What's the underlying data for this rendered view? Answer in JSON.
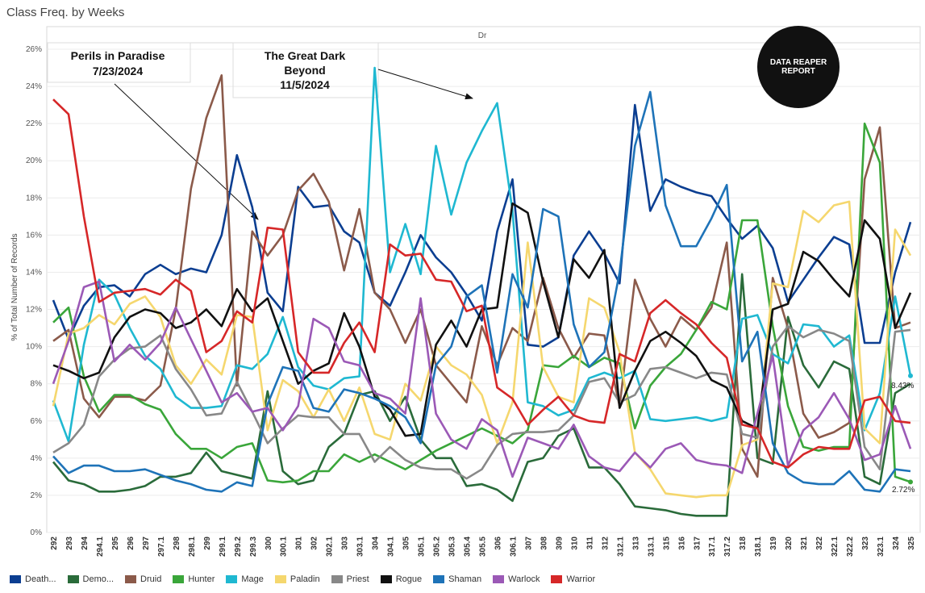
{
  "title": "Class Freq. by Weeks",
  "panel_header": "Dr",
  "logo_text": "DATA REAPER REPORT",
  "chart_data": {
    "type": "line",
    "ylabel": "% of Total Number of Records",
    "ylim": [
      0,
      26
    ],
    "yticks": [
      "0%",
      "2%",
      "4%",
      "6%",
      "8%",
      "10%",
      "12%",
      "14%",
      "16%",
      "18%",
      "20%",
      "22%",
      "24%",
      "26%"
    ],
    "x": [
      "292",
      "293",
      "294",
      "294.1",
      "295",
      "296",
      "297",
      "297.1",
      "298",
      "298.1",
      "299",
      "299.1",
      "299.2",
      "299.3",
      "300",
      "300.1",
      "301",
      "302",
      "302.1",
      "303",
      "303.1",
      "304",
      "304.1",
      "305",
      "305.1",
      "305.2",
      "305.3",
      "305.4",
      "305.5",
      "306",
      "306.1",
      "307",
      "308",
      "309",
      "310",
      "311",
      "312",
      "312.1",
      "313",
      "313.1",
      "315",
      "316",
      "317",
      "317.1",
      "317.2",
      "318",
      "318.1",
      "319",
      "320",
      "321",
      "322",
      "322.1",
      "322.2",
      "323",
      "323.1",
      "324",
      "325"
    ],
    "annotations": [
      {
        "text": "Perils in Paradise",
        "text2": "7/23/2024"
      },
      {
        "text": "The Great Dark",
        "text2": "Beyond",
        "text3": "11/5/2024"
      }
    ],
    "end_labels": [
      "8.43%",
      "2.72%"
    ],
    "series": [
      {
        "name": "Death...",
        "color": "#0b3e91",
        "values": [
          12.5,
          10.4,
          12.2,
          13.2,
          13.3,
          12.7,
          13.9,
          14.4,
          13.9,
          14.2,
          14.0,
          16.0,
          20.3,
          17.5,
          12.9,
          11.9,
          18.6,
          17.5,
          17.6,
          16.2,
          15.6,
          12.9,
          12.2,
          14.0,
          16.0,
          14.8,
          14.0,
          12.8,
          11.4,
          16.2,
          19.0,
          10.1,
          10.0,
          10.5,
          14.9,
          16.2,
          15.0,
          13.4,
          23.0,
          17.3,
          19.0,
          18.6,
          18.3,
          18.1,
          16.9,
          15.8,
          16.5,
          15.3,
          12.4,
          13.6,
          14.8,
          15.9,
          15.5,
          10.2,
          10.2,
          14.0,
          16.7
        ]
      },
      {
        "name": "Demo...",
        "color": "#2a6b3a",
        "values": [
          3.8,
          2.8,
          2.6,
          2.2,
          2.2,
          2.3,
          2.5,
          3.0,
          3.0,
          3.2,
          4.3,
          3.3,
          3.1,
          2.9,
          7.6,
          3.3,
          2.6,
          2.8,
          4.6,
          5.3,
          7.4,
          7.6,
          6.0,
          7.3,
          5.0,
          4.0,
          4.0,
          2.5,
          2.6,
          2.3,
          1.7,
          3.8,
          4.0,
          5.2,
          5.6,
          3.5,
          3.5,
          2.6,
          1.4,
          1.3,
          1.2,
          1.0,
          0.9,
          0.9,
          0.9,
          13.9,
          4.0,
          3.7,
          11.6,
          9.0,
          7.8,
          9.2,
          8.8,
          3.0,
          2.6,
          7.5,
          8.0
        ]
      },
      {
        "name": "Druid",
        "color": "#8b5a4a",
        "values": [
          10.3,
          10.9,
          7.2,
          6.2,
          7.3,
          7.3,
          7.1,
          7.9,
          12.0,
          18.5,
          22.3,
          24.6,
          7.9,
          16.2,
          14.9,
          16.0,
          18.4,
          19.3,
          17.8,
          14.1,
          17.4,
          12.9,
          12.0,
          10.2,
          12.0,
          9.0,
          8.0,
          7.0,
          11.1,
          9.0,
          11.0,
          10.3,
          13.7,
          11.0,
          9.4,
          10.7,
          10.6,
          6.8,
          13.6,
          11.5,
          10.0,
          11.6,
          10.9,
          12.1,
          15.6,
          4.5,
          3.0,
          13.7,
          11.0,
          6.4,
          5.1,
          5.4,
          5.9,
          19.0,
          21.8,
          11.0,
          11.3
        ]
      },
      {
        "name": "Hunter",
        "color": "#3aa63a",
        "values": [
          11.3,
          12.1,
          8.4,
          6.5,
          7.4,
          7.4,
          6.9,
          6.6,
          5.3,
          4.5,
          4.5,
          4.0,
          4.6,
          4.8,
          2.8,
          2.7,
          2.8,
          3.3,
          3.3,
          4.2,
          3.8,
          4.2,
          3.8,
          3.4,
          3.9,
          4.4,
          4.8,
          5.2,
          5.6,
          5.2,
          4.8,
          5.5,
          9.0,
          8.9,
          9.5,
          8.9,
          9.4,
          9.1,
          5.6,
          7.9,
          8.9,
          9.6,
          10.9,
          12.4,
          12.0,
          16.8,
          16.8,
          11.1,
          6.8,
          4.6,
          4.4,
          4.6,
          4.6,
          22.0,
          19.9,
          3.0,
          2.72
        ]
      },
      {
        "name": "Mage",
        "color": "#1fb8d1",
        "values": [
          7.1,
          4.9,
          10.1,
          13.6,
          12.8,
          11.0,
          9.5,
          8.8,
          7.3,
          6.7,
          6.7,
          6.8,
          9.0,
          8.8,
          9.6,
          11.6,
          8.9,
          7.9,
          7.7,
          8.3,
          8.4,
          25.0,
          14.0,
          16.6,
          13.9,
          20.8,
          17.1,
          19.9,
          21.6,
          23.1,
          17.3,
          7.0,
          6.8,
          6.3,
          6.6,
          8.3,
          8.6,
          8.3,
          8.7,
          6.1,
          6.0,
          6.1,
          6.2,
          6.0,
          6.2,
          11.5,
          11.7,
          9.6,
          9.1,
          11.2,
          11.1,
          10.0,
          10.6,
          5.5,
          7.5,
          12.7,
          8.43
        ]
      },
      {
        "name": "Paladin",
        "color": "#f5d76e",
        "values": [
          6.8,
          10.7,
          11.0,
          11.7,
          11.2,
          12.3,
          12.7,
          11.6,
          9.0,
          8.0,
          9.3,
          8.5,
          11.7,
          11.6,
          5.5,
          8.2,
          7.6,
          6.2,
          7.7,
          6.0,
          7.8,
          5.3,
          5.0,
          8.0,
          7.1,
          10.0,
          9.0,
          8.5,
          7.4,
          4.8,
          7.0,
          15.6,
          8.9,
          7.3,
          7.0,
          12.6,
          12.1,
          9.7,
          4.3,
          3.4,
          2.1,
          2.0,
          1.9,
          2.0,
          2.0,
          4.7,
          5.0,
          13.4,
          13.2,
          17.3,
          16.7,
          17.6,
          17.8,
          5.6,
          4.8,
          16.3,
          14.9
        ]
      },
      {
        "name": "Priest",
        "color": "#888888",
        "values": [
          4.3,
          4.8,
          5.8,
          8.4,
          9.3,
          9.9,
          10.0,
          10.6,
          8.8,
          7.7,
          6.3,
          6.4,
          8.1,
          6.5,
          4.8,
          5.6,
          6.3,
          6.2,
          6.2,
          5.3,
          5.3,
          3.8,
          4.6,
          3.9,
          3.5,
          3.4,
          3.4,
          2.9,
          3.4,
          4.7,
          5.3,
          5.4,
          5.4,
          5.5,
          6.3,
          8.1,
          8.3,
          7.0,
          7.4,
          8.8,
          8.9,
          8.6,
          8.3,
          8.6,
          8.5,
          5.3,
          5.1,
          10.0,
          11.1,
          10.5,
          10.9,
          10.7,
          10.3,
          4.6,
          3.4,
          10.8,
          10.9
        ]
      },
      {
        "name": "Rogue",
        "color": "#111111",
        "values": [
          9.0,
          8.7,
          8.3,
          8.6,
          10.5,
          11.6,
          12.0,
          11.8,
          11.0,
          11.3,
          12.0,
          11.1,
          13.1,
          11.9,
          12.6,
          10.3,
          8.0,
          8.7,
          9.1,
          11.8,
          10.0,
          7.3,
          6.6,
          5.2,
          5.3,
          10.1,
          11.4,
          10.0,
          12.0,
          12.1,
          17.7,
          17.2,
          13.5,
          10.5,
          14.7,
          13.7,
          15.2,
          6.7,
          8.7,
          10.3,
          10.8,
          10.2,
          9.5,
          8.2,
          7.8,
          6.0,
          5.6,
          12.0,
          12.3,
          15.1,
          14.6,
          13.6,
          12.7,
          16.8,
          15.8,
          11.0,
          12.9
        ]
      },
      {
        "name": "Shaman",
        "color": "#1e73b8",
        "values": [
          4.1,
          3.2,
          3.6,
          3.6,
          3.3,
          3.3,
          3.4,
          3.1,
          2.8,
          2.6,
          2.3,
          2.2,
          2.7,
          2.5,
          6.9,
          8.9,
          8.7,
          6.7,
          6.5,
          7.7,
          7.5,
          7.2,
          6.8,
          6.2,
          4.8,
          9.0,
          10.0,
          12.7,
          13.3,
          8.6,
          13.9,
          12.1,
          17.4,
          17.0,
          11.2,
          8.9,
          9.7,
          14.0,
          20.8,
          23.7,
          17.6,
          15.4,
          15.4,
          16.9,
          18.7,
          9.2,
          10.8,
          4.8,
          3.2,
          2.7,
          2.6,
          2.6,
          3.3,
          2.3,
          2.2,
          3.4,
          3.3
        ]
      },
      {
        "name": "Warlock",
        "color": "#9b59b6",
        "values": [
          8.0,
          10.3,
          13.2,
          13.5,
          9.2,
          10.1,
          9.3,
          10.2,
          12.1,
          10.4,
          8.7,
          7.0,
          7.5,
          6.5,
          6.7,
          5.5,
          6.8,
          11.5,
          11.0,
          9.2,
          9.0,
          7.5,
          7.2,
          6.4,
          12.6,
          6.4,
          5.0,
          4.5,
          6.1,
          5.5,
          3.0,
          5.1,
          4.8,
          4.5,
          5.8,
          4.1,
          3.5,
          3.3,
          4.3,
          3.5,
          4.5,
          4.8,
          3.9,
          3.7,
          3.6,
          3.2,
          6.4,
          9.5,
          3.6,
          5.5,
          6.2,
          7.5,
          6.1,
          3.9,
          4.2,
          6.8,
          4.5
        ]
      },
      {
        "name": "Warrior",
        "color": "#d62728",
        "values": [
          23.3,
          22.5,
          17.0,
          12.4,
          12.9,
          13.0,
          13.1,
          12.8,
          13.6,
          13.0,
          9.7,
          10.3,
          11.9,
          11.3,
          16.4,
          16.3,
          9.7,
          8.6,
          8.6,
          10.2,
          11.3,
          9.7,
          15.5,
          14.9,
          15.0,
          13.6,
          13.5,
          11.9,
          12.2,
          7.8,
          7.2,
          5.8,
          6.6,
          7.3,
          6.3,
          6.0,
          5.9,
          9.6,
          9.2,
          11.8,
          12.5,
          11.8,
          11.2,
          10.2,
          9.4,
          5.8,
          5.6,
          3.8,
          3.5,
          4.2,
          4.6,
          4.5,
          4.5,
          7.1,
          7.3,
          6.0,
          5.9
        ]
      }
    ]
  }
}
